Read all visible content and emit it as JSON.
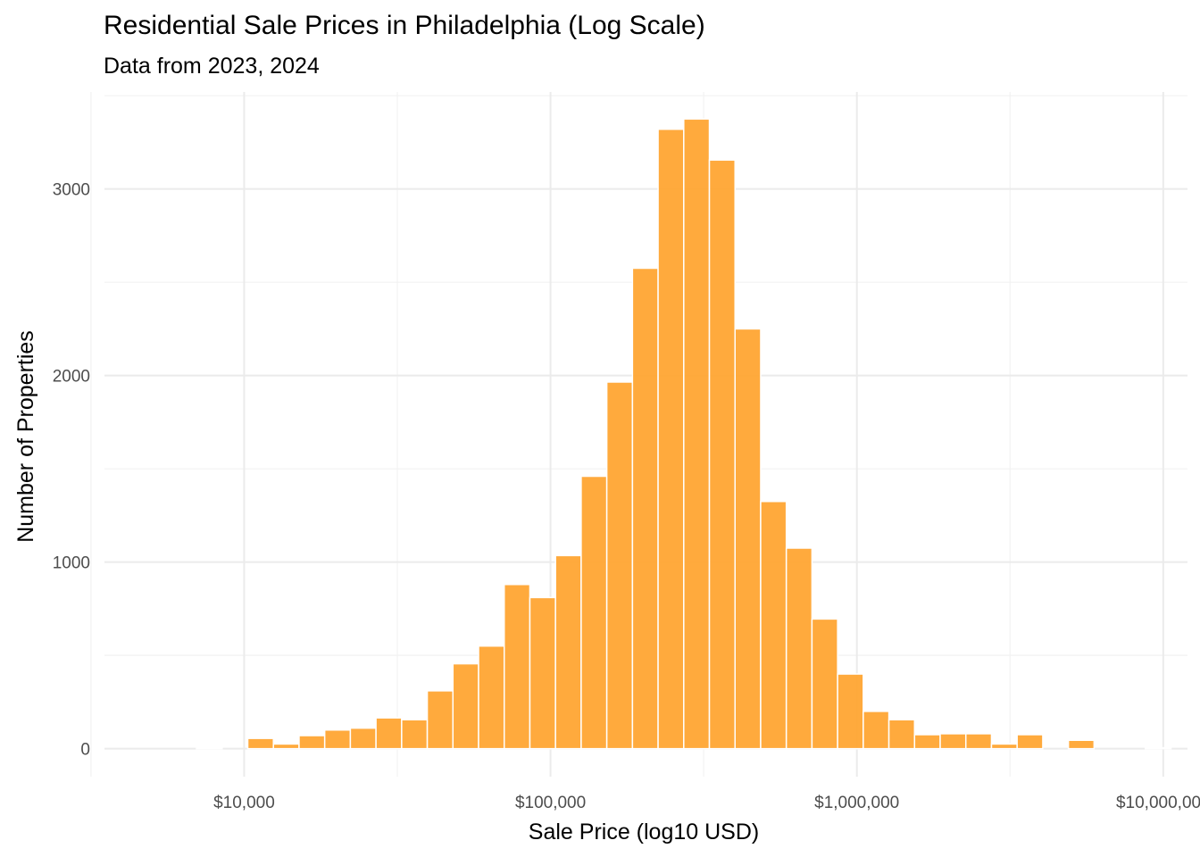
{
  "chart_data": {
    "type": "bar",
    "title": "Residential Sale Prices in Philadelphia (Log Scale)",
    "subtitle": "Data from 2023, 2024",
    "xlabel": "Sale Price (log10 USD)",
    "ylabel": "Number of Properties",
    "x_scale": "log10",
    "xlim": [
      3500,
      12000000
    ],
    "ylim": [
      -150,
      3520
    ],
    "x_ticks": [
      {
        "value": 10000,
        "label": "$10,000"
      },
      {
        "value": 100000,
        "label": "$100,000"
      },
      {
        "value": 1000000,
        "label": "$1,000,000"
      },
      {
        "value": 10000000,
        "label": "$10,000,000"
      }
    ],
    "y_ticks": [
      {
        "value": 0,
        "label": "0"
      },
      {
        "value": 1000,
        "label": "1000"
      },
      {
        "value": 2000,
        "label": "2000"
      },
      {
        "value": 3000,
        "label": "3000"
      }
    ],
    "grid": true,
    "bar_color": "#ffa533",
    "series": [
      {
        "bins": [
          {
            "x_min": 4753,
            "x_max": 5764,
            "count": 0
          },
          {
            "x_min": 5764,
            "x_max": 6989,
            "count": 0
          },
          {
            "x_min": 6989,
            "x_max": 8475,
            "count": 5
          },
          {
            "x_min": 8475,
            "x_max": 10276,
            "count": 0
          },
          {
            "x_min": 10276,
            "x_max": 12461,
            "count": 55
          },
          {
            "x_min": 12461,
            "x_max": 15110,
            "count": 25
          },
          {
            "x_min": 15110,
            "x_max": 18322,
            "count": 70
          },
          {
            "x_min": 18322,
            "x_max": 22217,
            "count": 100
          },
          {
            "x_min": 22217,
            "x_max": 26939,
            "count": 110
          },
          {
            "x_min": 26939,
            "x_max": 32666,
            "count": 165
          },
          {
            "x_min": 32666,
            "x_max": 39610,
            "count": 155
          },
          {
            "x_min": 39610,
            "x_max": 48030,
            "count": 310
          },
          {
            "x_min": 48030,
            "x_max": 58239,
            "count": 455
          },
          {
            "x_min": 58239,
            "x_max": 70619,
            "count": 550
          },
          {
            "x_min": 70619,
            "x_max": 85631,
            "count": 880
          },
          {
            "x_min": 85631,
            "x_max": 103834,
            "count": 810
          },
          {
            "x_min": 103834,
            "x_max": 125906,
            "count": 1035
          },
          {
            "x_min": 125906,
            "x_max": 152670,
            "count": 1460
          },
          {
            "x_min": 152670,
            "x_max": 185124,
            "count": 1965
          },
          {
            "x_min": 185124,
            "x_max": 224476,
            "count": 2575
          },
          {
            "x_min": 224476,
            "x_max": 272194,
            "count": 3320
          },
          {
            "x_min": 272194,
            "x_max": 330054,
            "count": 3375
          },
          {
            "x_min": 330054,
            "x_max": 400215,
            "count": 3155
          },
          {
            "x_min": 400215,
            "x_max": 485289,
            "count": 2250
          },
          {
            "x_min": 485289,
            "x_max": 588448,
            "count": 1325
          },
          {
            "x_min": 588448,
            "x_max": 713535,
            "count": 1075
          },
          {
            "x_min": 713535,
            "x_max": 865212,
            "count": 695
          },
          {
            "x_min": 865212,
            "x_max": 1049131,
            "count": 400
          },
          {
            "x_min": 1049131,
            "x_max": 1272145,
            "count": 200
          },
          {
            "x_min": 1272145,
            "x_max": 1542566,
            "count": 155
          },
          {
            "x_min": 1542566,
            "x_max": 1870470,
            "count": 75
          },
          {
            "x_min": 1870470,
            "x_max": 2268078,
            "count": 80
          },
          {
            "x_min": 2268078,
            "x_max": 2750204,
            "count": 80
          },
          {
            "x_min": 2750204,
            "x_max": 3334814,
            "count": 25
          },
          {
            "x_min": 3334814,
            "x_max": 4043688,
            "count": 75
          },
          {
            "x_min": 4043688,
            "x_max": 4903248,
            "count": 0
          },
          {
            "x_min": 4903248,
            "x_max": 5945529,
            "count": 45
          },
          {
            "x_min": 5945529,
            "x_max": 7209366,
            "count": 0
          },
          {
            "x_min": 7209366,
            "x_max": 8741856,
            "count": 0
          },
          {
            "x_min": 8741856,
            "x_max": 10600000,
            "count": 5
          }
        ]
      }
    ]
  }
}
